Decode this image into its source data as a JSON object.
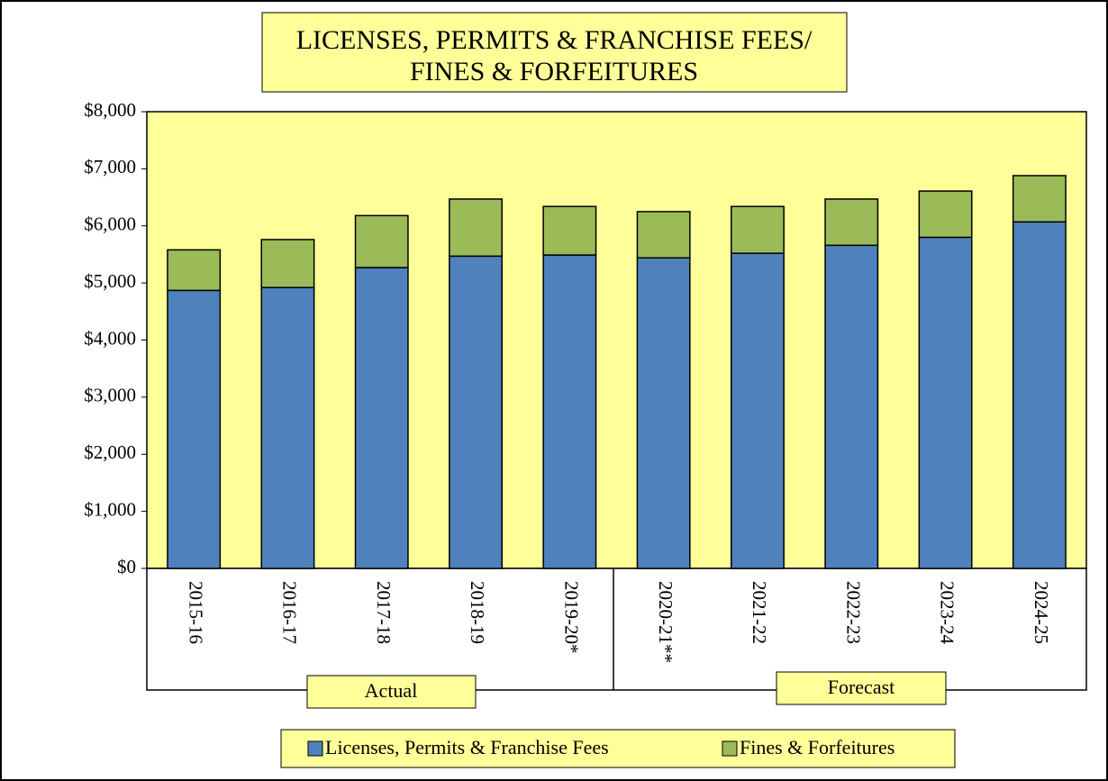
{
  "chart_data": {
    "type": "stacked_bar",
    "title": [
      "LICENSES, PERMITS & FRANCHISE FEES/",
      "FINES & FORFEITURES"
    ],
    "categories": [
      "2015-16",
      "2016-17",
      "2017-18",
      "2018-19",
      "2019-20*",
      "2020-21**",
      "2021-22",
      "2022-23",
      "2023-24",
      "2024-25"
    ],
    "series": [
      {
        "name": "Licenses, Permits & Franchise Fees",
        "color": "#4f81bd",
        "values": [
          4870,
          4920,
          5270,
          5470,
          5490,
          5440,
          5520,
          5660,
          5800,
          6070
        ]
      },
      {
        "name": "Fines & Forfeitures",
        "color": "#9bbb59",
        "values": [
          710,
          840,
          910,
          1000,
          850,
          810,
          820,
          810,
          810,
          810
        ]
      }
    ],
    "ylim": [
      0,
      8000
    ],
    "yticks": [
      {
        "value": 0,
        "label": "$0"
      },
      {
        "value": 1000,
        "label": "$1,000"
      },
      {
        "value": 2000,
        "label": "$2,000"
      },
      {
        "value": 3000,
        "label": "$3,000"
      },
      {
        "value": 4000,
        "label": "$4,000"
      },
      {
        "value": 5000,
        "label": "$5,000"
      },
      {
        "value": 6000,
        "label": "$6,000"
      },
      {
        "value": 7000,
        "label": "$7,000"
      },
      {
        "value": 8000,
        "label": "$8,000"
      }
    ],
    "annotations": [
      "Actual",
      "Forecast"
    ],
    "legend": "bottom"
  }
}
